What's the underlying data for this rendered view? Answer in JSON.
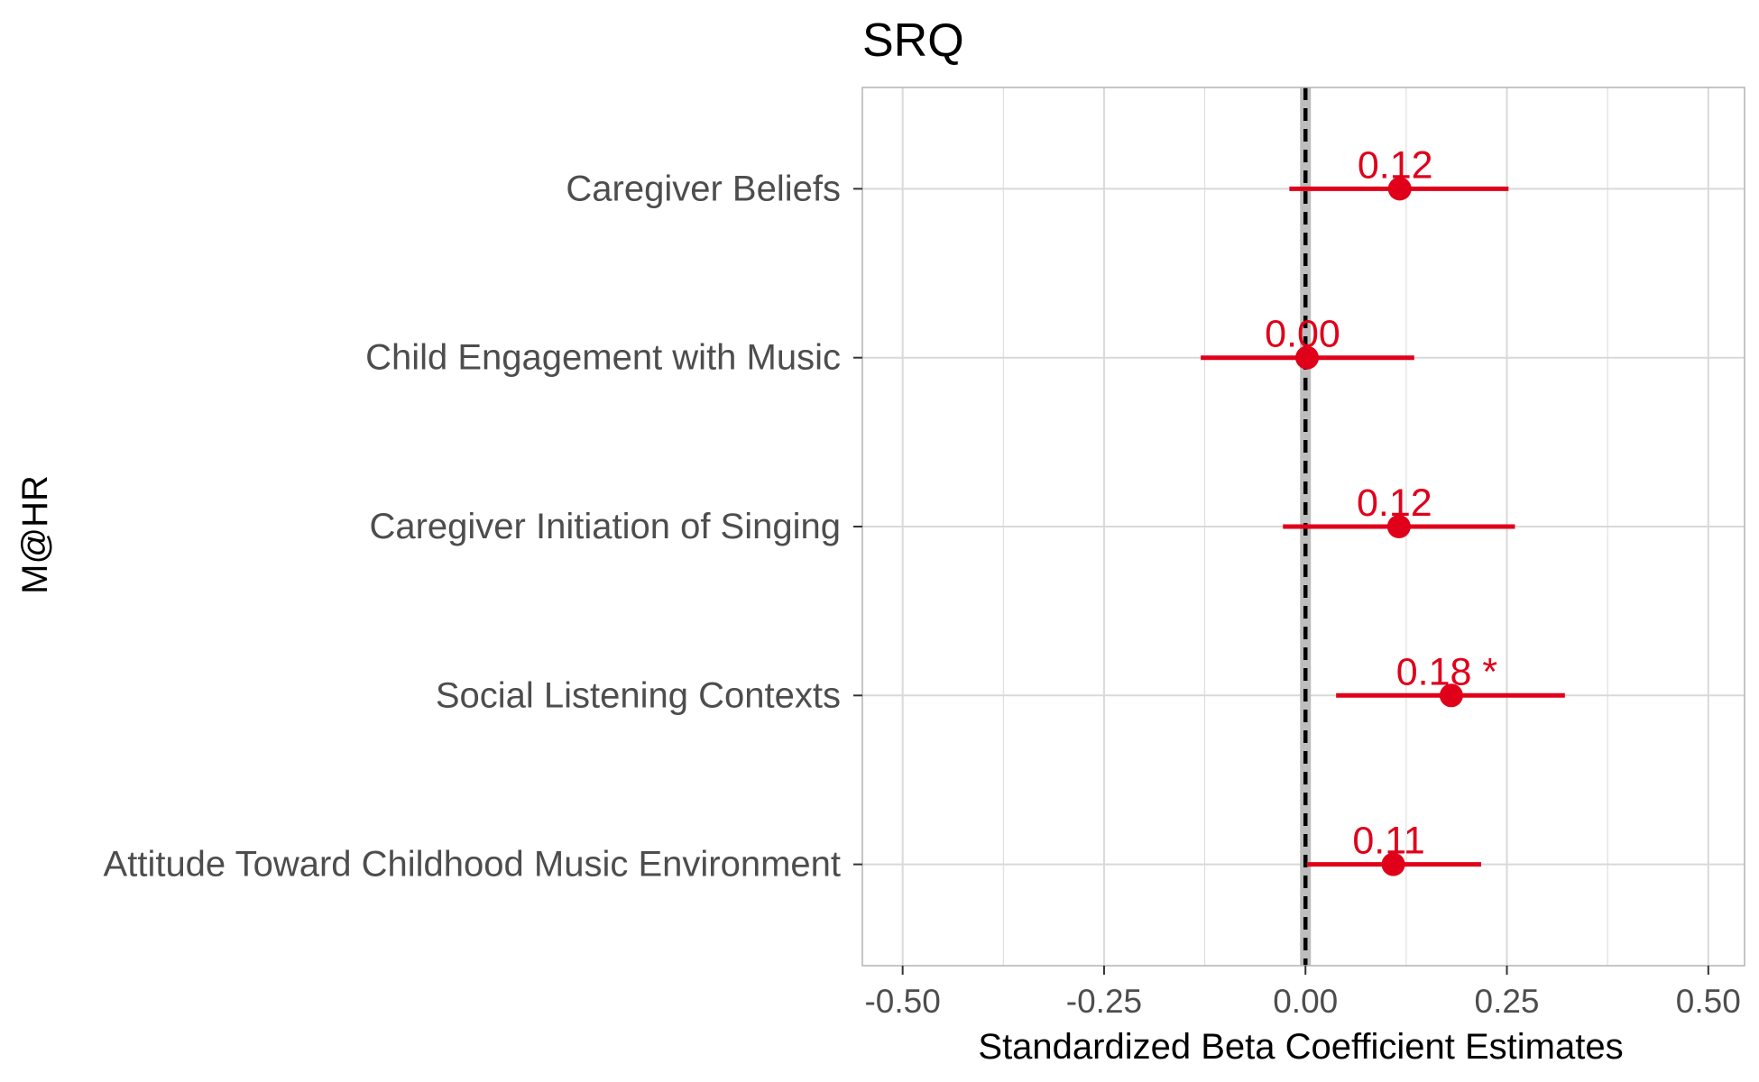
{
  "chart_data": {
    "type": "scatter",
    "title": "SRQ",
    "xlabel": "Standardized Beta Coefficient Estimates",
    "ylabel": "M@HR",
    "xlim": [
      -0.55,
      0.545
    ],
    "x_ticks": [
      "-0.50",
      "-0.25",
      "0.00",
      "0.25",
      "0.50"
    ],
    "x_tick_values": [
      -0.5,
      -0.25,
      0,
      0.25,
      0.5
    ],
    "reference_line": 0,
    "grid": true,
    "categories": [
      "Caregiver Beliefs",
      "Child Engagement with Music",
      "Caregiver Initiation of Singing",
      "Social Listening Contexts",
      "Attitude Toward Childhood Music Environment"
    ],
    "series": [
      {
        "estimates": [
          0.117,
          0.002,
          0.116,
          0.181,
          0.109
        ],
        "ci_low": [
          -0.02,
          -0.13,
          -0.028,
          0.038,
          0.002
        ],
        "ci_high": [
          0.252,
          0.135,
          0.26,
          0.322,
          0.218
        ],
        "labels": [
          "0.12",
          "0.00",
          "0.12",
          "0.18 *",
          "0.11"
        ]
      }
    ],
    "colors": {
      "point": "#e0001a",
      "reference_line": "#000000",
      "reference_band": "#bdbdbd",
      "grid": "#d9d9d9",
      "panel_border": "#b3b3b3"
    }
  }
}
